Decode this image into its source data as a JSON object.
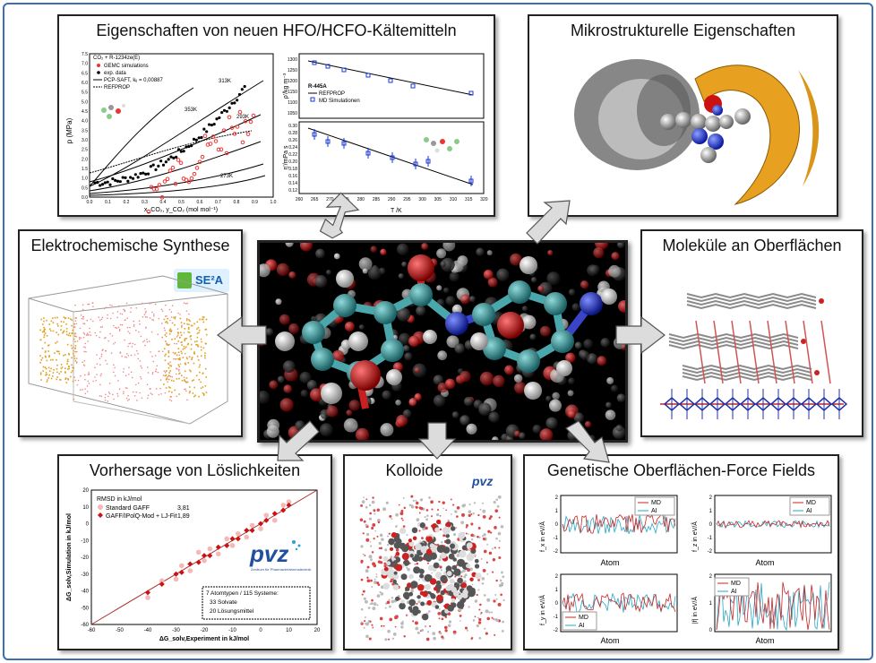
{
  "panels": {
    "hfo": {
      "title": "Eigenschaften von neuen HFO/HCFO-Kältemitteln",
      "left_chart": {
        "system": "CO₂ + R-1234ze(E)",
        "legend": [
          "GEMC simulations",
          "exp. data",
          "PCP-SAFT, kᵢⱼ = 0,00887",
          "REFPROP"
        ],
        "ylabel": "p (MPa)",
        "xlabel": "x_CO₂, y_CO₂ (mol mol⁻¹)",
        "yticks": [
          "0.0",
          "0.5",
          "1.0",
          "1.5",
          "2.0",
          "2.5",
          "3.0",
          "3.5",
          "4.0",
          "4.5",
          "5.0",
          "5.5",
          "6.0",
          "6.5",
          "7.0",
          "7.5"
        ],
        "xticks": [
          "0.0",
          "0.1",
          "0.2",
          "0.3",
          "0.4",
          "0.5",
          "0.6",
          "0.7",
          "0.8",
          "0.9",
          "1.0"
        ],
        "temps": [
          "313K",
          "353K",
          "293K",
          "273K"
        ]
      },
      "right_top": {
        "ylabel": "ρ'/kg m⁻³",
        "yticks": [
          "1300",
          "1250",
          "1200",
          "1150",
          "1100",
          "1050"
        ],
        "legend_title": "R-445A",
        "legend": [
          "REFPROP",
          "MD Simulationen"
        ]
      },
      "right_bottom": {
        "ylabel": "η'/mPa s",
        "yticks": [
          "0.30",
          "0.28",
          "0.26",
          "0.24",
          "0.22",
          "0.20",
          "0.18",
          "0.16",
          "0.14",
          "0.12"
        ],
        "xticks": [
          "260",
          "265",
          "270",
          "275",
          "280",
          "285",
          "290",
          "295",
          "300",
          "305",
          "310",
          "315",
          "320"
        ],
        "xlabel": "T /K"
      }
    },
    "micro": {
      "title": "Mikrostrukturelle Eigenschaften"
    },
    "electro": {
      "title": "Elektrochemische Synthese",
      "logo": "SE²A"
    },
    "surf": {
      "title": "Moleküle an Oberflächen"
    },
    "solub": {
      "title": "Vorhersage von Löslichkeiten",
      "rmsd_title": "RMSD in kJ/mol",
      "legend": [
        {
          "label": "Standard GAFF",
          "value": "3,81"
        },
        {
          "label": "GAFF/IPolQ-Mod + LJ-Fit",
          "value": "1,89"
        }
      ],
      "info": [
        "7 Atomtypen / 115 Systeme:",
        "33 Solvate",
        "20 Lösungsmittel"
      ],
      "logo": "pvz",
      "logo_sub": "Zentrum für Pharmaverfahrenstechnik",
      "ylabel": "ΔG_solv,Simulation in kJ/mol",
      "xlabel": "ΔG_solv,Experiment in kJ/mol",
      "xticks": [
        "-60",
        "-50",
        "-40",
        "-30",
        "-20",
        "-10",
        "0",
        "10",
        "20"
      ],
      "yticks": [
        "20",
        "10",
        "0",
        "-10",
        "-20",
        "-30",
        "-40",
        "-50",
        "-60"
      ]
    },
    "colloid": {
      "title": "Kolloide",
      "logo": "pvz"
    },
    "genetic": {
      "title": "Genetische Oberflächen-Force Fields",
      "legend": [
        "MD",
        "AI"
      ],
      "xlabel": "Atom",
      "ylabels": [
        "f_x in eV/Å",
        "f_z in eV/Å",
        "f_y in eV/Å",
        "|f| in eV/Å"
      ],
      "yticks": [
        "2",
        "1",
        "0",
        "-1",
        "-2"
      ],
      "yticks_abs": [
        "2",
        "1",
        "0"
      ]
    }
  },
  "colors": {
    "frame": "#3a6fb5",
    "arrow_fill": "#dcdcdc",
    "gold": "#e0a020",
    "teal": "#3a9aa0",
    "red": "#cc1111",
    "blue": "#1530c0",
    "md": "#cc2222",
    "ai": "#26a8c8"
  },
  "chart_data": [
    {
      "type": "scatter",
      "title": "",
      "xlabel": "ΔG_solv,Experiment in kJ/mol",
      "ylabel": "ΔG_solv,Simulation in kJ/mol",
      "xlim": [
        -60,
        20
      ],
      "ylim": [
        -60,
        20
      ],
      "series": [
        {
          "name": "Standard GAFF",
          "x": [
            -40,
            -35,
            -30,
            -28,
            -25,
            -22,
            -20,
            -18,
            -15,
            -12,
            -10,
            -8,
            -5,
            -3,
            0,
            2,
            5,
            8,
            10
          ],
          "y": [
            -44,
            -34,
            -33,
            -25,
            -28,
            -17,
            -22,
            -15,
            -18,
            -9,
            -13,
            -6,
            -8,
            -1,
            -3,
            5,
            2,
            11,
            13
          ]
        },
        {
          "name": "GAFF/IPolQ-Mod + LJ-Fit",
          "x": [
            -40,
            -35,
            -30,
            -28,
            -25,
            -22,
            -20,
            -18,
            -15,
            -12,
            -10,
            -8,
            -5,
            -3,
            0,
            2,
            5,
            8,
            10
          ],
          "y": [
            -41,
            -36,
            -30,
            -29,
            -24,
            -23,
            -19,
            -19,
            -14,
            -13,
            -9,
            -9,
            -4,
            -4,
            0,
            2,
            6,
            8,
            11
          ]
        }
      ]
    }
  ]
}
